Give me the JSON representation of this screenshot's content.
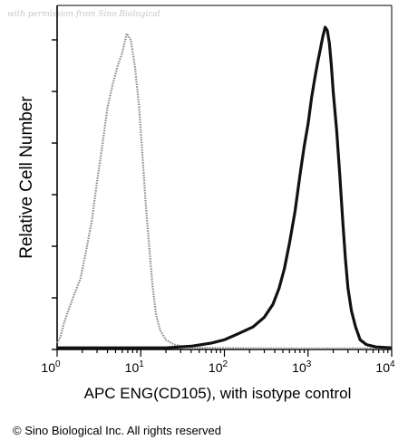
{
  "watermark": "with permission from Sino Biological",
  "copyright": "© Sino Biological Inc. All rights reserved",
  "chart_data": {
    "type": "line",
    "xlabel": "APC ENG(CD105), with isotype control",
    "ylabel": "Relative Cell Number",
    "x_scale": "log",
    "xlim": [
      1,
      10000
    ],
    "ylim": [
      0,
      100
    ],
    "x_ticks": [
      {
        "base": "10",
        "exp": "0"
      },
      {
        "base": "10",
        "exp": "1"
      },
      {
        "base": "10",
        "exp": "2"
      },
      {
        "base": "10",
        "exp": "3"
      },
      {
        "base": "10",
        "exp": "4"
      }
    ],
    "grid": false,
    "series": [
      {
        "style": "dotted-gray",
        "color": "#8a8a8a",
        "points": [
          [
            1,
            2
          ],
          [
            1.1,
            4
          ],
          [
            1.2,
            8
          ],
          [
            1.4,
            13
          ],
          [
            1.6,
            17
          ],
          [
            1.9,
            22
          ],
          [
            2.2,
            30
          ],
          [
            2.6,
            40
          ],
          [
            3.0,
            52
          ],
          [
            3.5,
            64
          ],
          [
            4.0,
            75
          ],
          [
            4.6,
            82
          ],
          [
            5.3,
            88
          ],
          [
            6.0,
            92
          ],
          [
            6.8,
            98
          ],
          [
            7.6,
            96
          ],
          [
            8.5,
            88
          ],
          [
            9.5,
            76
          ],
          [
            10.5,
            60
          ],
          [
            11.5,
            45
          ],
          [
            12.6,
            32
          ],
          [
            13.8,
            20
          ],
          [
            15.2,
            11
          ],
          [
            17,
            6
          ],
          [
            20,
            3
          ],
          [
            25,
            1.5
          ],
          [
            35,
            0.8
          ],
          [
            60,
            0.5
          ],
          [
            200,
            0.4
          ],
          [
            1000,
            0.3
          ],
          [
            10000,
            0.3
          ]
        ]
      },
      {
        "style": "solid-black",
        "color": "#111111",
        "points": [
          [
            1,
            0.5
          ],
          [
            20,
            0.5
          ],
          [
            40,
            1
          ],
          [
            70,
            2
          ],
          [
            100,
            3
          ],
          [
            150,
            5
          ],
          [
            220,
            7
          ],
          [
            300,
            10
          ],
          [
            380,
            14
          ],
          [
            450,
            19
          ],
          [
            520,
            25
          ],
          [
            600,
            33
          ],
          [
            700,
            43
          ],
          [
            800,
            54
          ],
          [
            900,
            63
          ],
          [
            1000,
            70
          ],
          [
            1100,
            78
          ],
          [
            1200,
            84
          ],
          [
            1300,
            89
          ],
          [
            1400,
            93
          ],
          [
            1500,
            97
          ],
          [
            1600,
            100
          ],
          [
            1700,
            99
          ],
          [
            1800,
            95
          ],
          [
            1900,
            88
          ],
          [
            2000,
            80
          ],
          [
            2200,
            68
          ],
          [
            2400,
            54
          ],
          [
            2600,
            40
          ],
          [
            2800,
            28
          ],
          [
            3000,
            19
          ],
          [
            3300,
            12
          ],
          [
            3700,
            7
          ],
          [
            4200,
            3
          ],
          [
            5000,
            1.5
          ],
          [
            6500,
            0.8
          ],
          [
            10000,
            0.5
          ]
        ]
      }
    ]
  }
}
